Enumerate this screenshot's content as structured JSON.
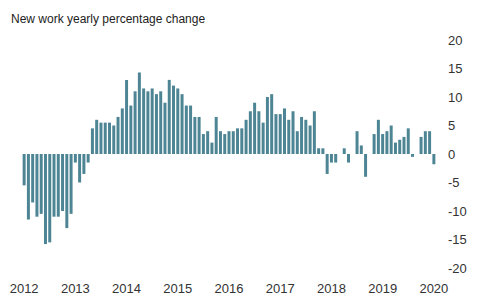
{
  "chart_data": {
    "type": "bar",
    "title": "New work yearly percentage change",
    "categories": [
      "2012",
      null,
      null,
      null,
      null,
      null,
      null,
      null,
      null,
      null,
      null,
      null,
      "2013",
      null,
      null,
      null,
      null,
      null,
      null,
      null,
      null,
      null,
      null,
      null,
      "2014",
      null,
      null,
      null,
      null,
      null,
      null,
      null,
      null,
      null,
      null,
      null,
      "2015",
      null,
      null,
      null,
      null,
      null,
      null,
      null,
      null,
      null,
      null,
      null,
      "2016",
      null,
      null,
      null,
      null,
      null,
      null,
      null,
      null,
      null,
      null,
      null,
      "2017",
      null,
      null,
      null,
      null,
      null,
      null,
      null,
      null,
      null,
      null,
      null,
      "2018",
      null,
      null,
      null,
      null,
      null,
      null,
      null,
      null,
      null,
      null,
      null,
      "2019",
      null,
      null,
      null,
      null,
      null,
      null,
      null,
      null,
      null,
      null,
      null,
      "2020"
    ],
    "values": [
      -5.5,
      -11.5,
      -8.5,
      -11,
      -10.5,
      -15.8,
      -15.5,
      -11,
      -11,
      -10,
      -13,
      -10.5,
      -1.5,
      -5,
      -3.5,
      -1.5,
      4.5,
      6,
      5.5,
      5.5,
      5.5,
      5,
      6.5,
      8,
      13,
      8.5,
      11,
      14.3,
      11.5,
      11,
      11.5,
      10.5,
      11,
      9,
      13,
      12,
      11.5,
      10.5,
      8.5,
      8.5,
      6.5,
      6.5,
      3.5,
      4,
      2,
      6.5,
      4,
      3.5,
      4,
      4,
      4.5,
      4.5,
      6,
      7.5,
      9,
      7.5,
      5.5,
      10,
      10.5,
      7,
      7,
      8,
      6,
      7.5,
      4,
      6.5,
      6,
      5,
      7.5,
      1,
      1,
      -3.5,
      -1.5,
      -1.5,
      0,
      1,
      -1.5,
      0,
      4,
      1.5,
      -4,
      0,
      3.5,
      6,
      3.5,
      4,
      5,
      2,
      2.5,
      3,
      4.5,
      -0.5,
      0,
      3,
      4,
      4,
      -1.8
    ],
    "color": "#4d8594",
    "ylim": [
      -20,
      20
    ],
    "yticks": [
      -20,
      -15,
      -10,
      -5,
      0,
      5,
      10,
      15,
      20
    ],
    "grid": false
  }
}
